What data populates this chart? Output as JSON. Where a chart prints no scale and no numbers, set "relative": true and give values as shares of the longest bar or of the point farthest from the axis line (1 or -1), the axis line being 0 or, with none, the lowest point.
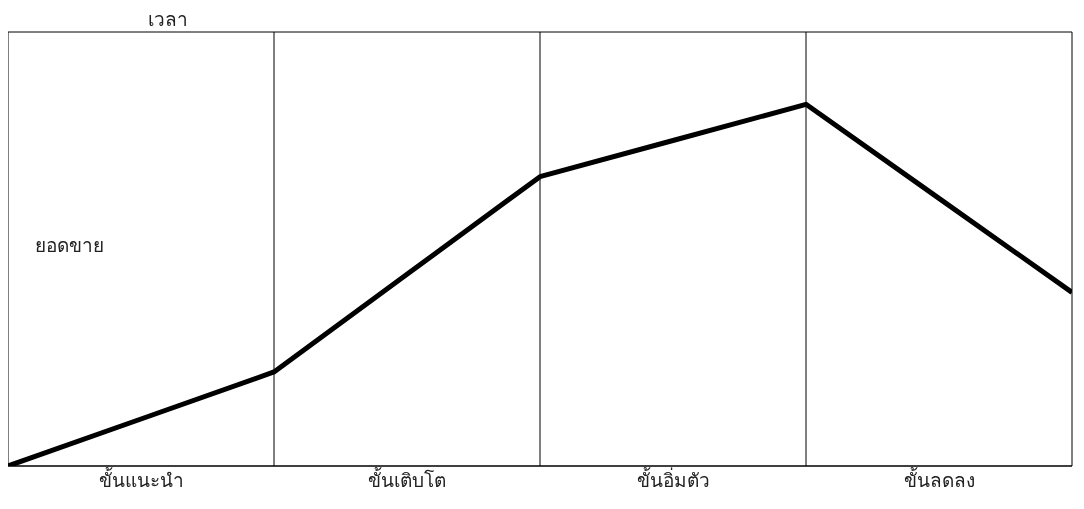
{
  "chart_data": {
    "type": "line",
    "xlabel": "เวลา",
    "ylabel": "ยอดขาย",
    "relative": true,
    "categories": [
      null,
      "ขั้นแนะนำ",
      null,
      "ขั้นเติบโต",
      null,
      "ขั้นอิ่มตัว",
      null,
      "ขั้นลดลง",
      null
    ],
    "series": [
      {
        "color": "#000000",
        "values": [
          0,
          0.13,
          0.26,
          0.53,
          0.8,
          0.9,
          1,
          0.74,
          0.48
        ]
      }
    ],
    "grid": "x",
    "marker": "none",
    "line_style": "solid"
  }
}
